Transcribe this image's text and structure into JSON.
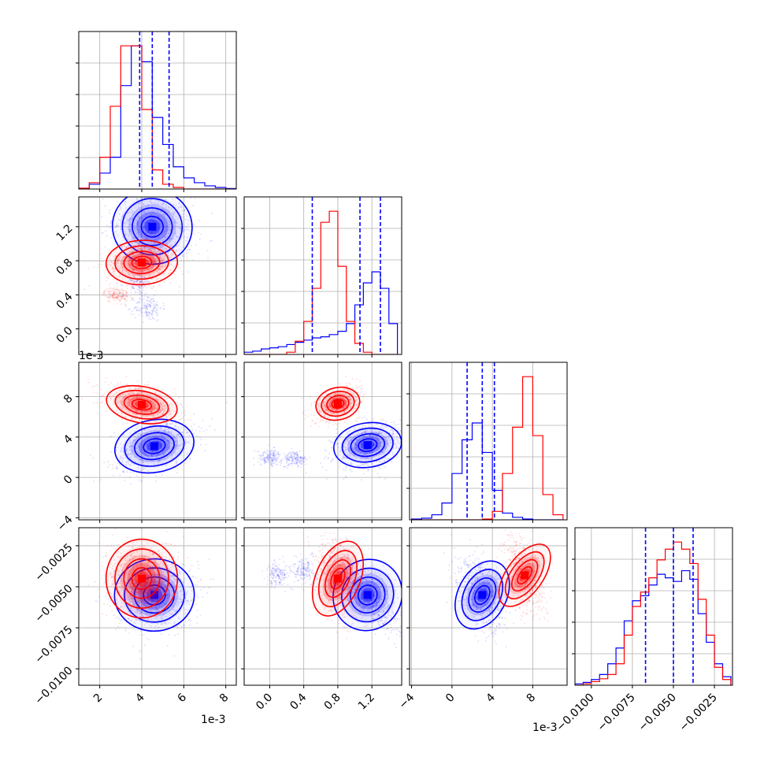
{
  "colors": {
    "series_a": "#0000ff",
    "series_b": "#ff0000",
    "grid": "#b0b0b0"
  },
  "chart_data": {
    "type": "corner",
    "grid": true,
    "series": [
      {
        "color": "#0000ff"
      },
      {
        "color": "#ff0000"
      }
    ],
    "variables": [
      {
        "offset_text": "1e-3",
        "range": [
          1.0,
          8.5
        ],
        "ticks": [
          2,
          4,
          6,
          8
        ],
        "tick_labels": [
          "2",
          "4",
          "6",
          "8"
        ],
        "scale": 0.001
      },
      {
        "offset_text": "",
        "range": [
          -0.3,
          1.55
        ],
        "ticks": [
          0.0,
          0.4,
          0.8,
          1.2
        ],
        "tick_labels": [
          "0.0",
          "0.4",
          "0.8",
          "1.2"
        ],
        "scale": 1
      },
      {
        "offset_text": "1e-3",
        "range": [
          -4.2,
          11.4
        ],
        "ticks": [
          -4,
          0,
          4,
          8
        ],
        "tick_labels": [
          "−4",
          "0",
          "4",
          "8"
        ],
        "scale": 0.001
      },
      {
        "offset_text": "",
        "range": [
          -0.011,
          -0.0014
        ],
        "ticks": [
          -0.01,
          -0.0075,
          -0.005,
          -0.0025
        ],
        "tick_labels": [
          "−0.0100",
          "−0.0075",
          "−0.0050",
          "−0.0025"
        ],
        "scale": 1
      }
    ],
    "marginals": [
      {
        "edges": [
          1.0,
          1.5,
          2.0,
          2.5,
          3.0,
          3.5,
          4.0,
          4.5,
          5.0,
          5.5,
          6.0,
          6.5,
          7.0,
          7.5,
          8.0,
          8.5
        ],
        "series_a": [
          0.5,
          3,
          10,
          20,
          65,
          90,
          80,
          45,
          28,
          14,
          7,
          4,
          2,
          1,
          0.3
        ],
        "series_b": [
          0.5,
          4,
          20,
          52,
          90,
          90,
          50,
          12,
          3,
          1,
          0,
          0,
          0,
          0,
          0
        ],
        "quantiles_a": [
          3.9,
          4.5,
          5.3
        ]
      },
      {
        "edges": [
          -0.3,
          -0.2,
          -0.1,
          0.0,
          0.1,
          0.2,
          0.3,
          0.4,
          0.5,
          0.6,
          0.7,
          0.8,
          0.9,
          1.0,
          1.1,
          1.2,
          1.3,
          1.4,
          1.5
        ],
        "series_a": [
          2,
          3,
          5,
          6,
          7,
          9,
          11,
          13,
          15,
          16,
          18,
          21,
          28,
          45,
          65,
          75,
          60,
          28
        ],
        "series_b": [
          0,
          0,
          0,
          0,
          0,
          2,
          12,
          30,
          60,
          120,
          130,
          80,
          30,
          10,
          2,
          0,
          0,
          0
        ],
        "quantiles_a": [
          0.5,
          1.06,
          1.3
        ]
      },
      {
        "edges": [
          -4,
          -3,
          -2,
          -1,
          0,
          1,
          2,
          3,
          4,
          5,
          6,
          7,
          8,
          9,
          10,
          11
        ],
        "series_a": [
          1,
          2,
          6,
          20,
          55,
          95,
          115,
          80,
          35,
          8,
          3,
          1,
          0,
          0,
          0
        ],
        "series_b": [
          0,
          0,
          0,
          0,
          0,
          0,
          0,
          1,
          10,
          55,
          110,
          170,
          100,
          30,
          6
        ],
        "quantiles_a": [
          1.5,
          3.0,
          4.2
        ]
      },
      {
        "edges": [
          -0.011,
          -0.0105,
          -0.01,
          -0.0095,
          -0.009,
          -0.0085,
          -0.008,
          -0.0075,
          -0.007,
          -0.0065,
          -0.006,
          -0.0055,
          -0.005,
          -0.0045,
          -0.004,
          -0.0035,
          -0.003,
          -0.0025,
          -0.002,
          -0.0015
        ],
        "series_a": [
          2,
          4,
          8,
          15,
          30,
          52,
          90,
          118,
          125,
          140,
          155,
          150,
          145,
          160,
          148,
          100,
          60,
          30,
          12
        ],
        "series_b": [
          0,
          2,
          5,
          9,
          15,
          30,
          70,
          110,
          130,
          150,
          175,
          190,
          200,
          190,
          170,
          120,
          70,
          25,
          8
        ],
        "quantiles_a": [
          -0.0067,
          -0.005,
          -0.0038
        ]
      }
    ],
    "joint": [
      {
        "row": 1,
        "col": 0,
        "series_a": {
          "mean": [
            4.5,
            1.2
          ],
          "sd": [
            0.95,
            0.22
          ],
          "rho": -0.2,
          "tail": [
            [
              3.8,
              0.55
            ],
            [
              4.3,
              0.25
            ]
          ]
        },
        "series_b": {
          "mean": [
            4.0,
            0.78
          ],
          "sd": [
            0.85,
            0.13
          ],
          "rho": 0.1,
          "tail": [
            [
              2.8,
              0.4
            ]
          ]
        }
      },
      {
        "row": 2,
        "col": 0,
        "series_a": {
          "mean": [
            4.6,
            3.1
          ],
          "sd": [
            0.95,
            1.3
          ],
          "rho": 0.35,
          "tail": []
        },
        "series_b": {
          "mean": [
            4.0,
            7.2
          ],
          "sd": [
            0.85,
            0.9
          ],
          "rho": -0.45,
          "tail": []
        }
      },
      {
        "row": 2,
        "col": 1,
        "series_a": {
          "mean": [
            1.15,
            3.2
          ],
          "sd": [
            0.2,
            1.1
          ],
          "rho": 0.3,
          "tail": [
            [
              0.3,
              1.8
            ],
            [
              0.0,
              2.0
            ]
          ]
        },
        "series_b": {
          "mean": [
            0.8,
            7.3
          ],
          "sd": [
            0.13,
            0.8
          ],
          "rho": 0.4,
          "tail": []
        }
      },
      {
        "row": 3,
        "col": 0,
        "series_a": {
          "mean": [
            4.6,
            -0.0055
          ],
          "sd": [
            0.95,
            0.0011
          ],
          "rho": 0.05,
          "tail": []
        },
        "series_b": {
          "mean": [
            4.0,
            -0.0045
          ],
          "sd": [
            0.85,
            0.0012
          ],
          "rho": 0.0,
          "tail": []
        }
      },
      {
        "row": 3,
        "col": 1,
        "series_a": {
          "mean": [
            1.15,
            -0.0055
          ],
          "sd": [
            0.2,
            0.0011
          ],
          "rho": -0.7,
          "tail": [
            [
              0.4,
              -0.004
            ],
            [
              0.1,
              -0.0042
            ]
          ]
        },
        "series_b": {
          "mean": [
            0.8,
            -0.0045
          ],
          "sd": [
            0.13,
            0.0012
          ],
          "rho": -0.3,
          "tail": []
        }
      },
      {
        "row": 3,
        "col": 2,
        "series_a": {
          "mean": [
            3.0,
            -0.0055
          ],
          "sd": [
            1.2,
            0.0011
          ],
          "rho": -0.45,
          "tail": []
        },
        "series_b": {
          "mean": [
            7.2,
            -0.0043
          ],
          "sd": [
            0.9,
            0.0011
          ],
          "rho": -0.5,
          "tail": []
        }
      }
    ]
  }
}
